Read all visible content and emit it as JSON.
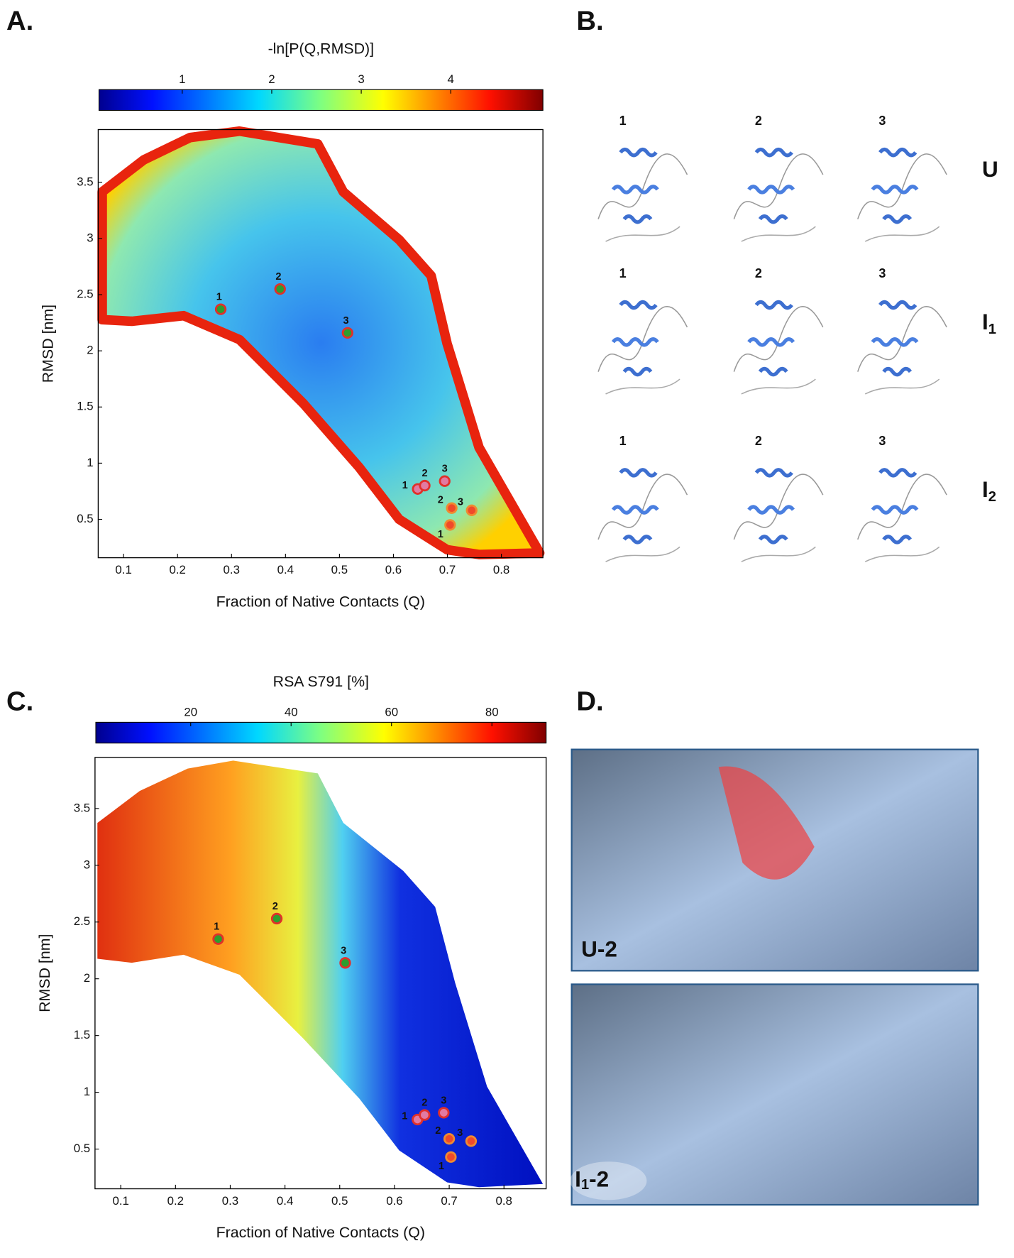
{
  "panels": [
    {
      "label": "A."
    },
    {
      "label": "B."
    },
    {
      "label": "C."
    },
    {
      "label": "D."
    }
  ],
  "chart_data": [
    {
      "type": "scatter",
      "colorbar_label": "-ln[P(Q,RMSD)]",
      "colorbar_lim": [
        0.07,
        5.03
      ],
      "colorbar_ticks": [
        1,
        2,
        3,
        4
      ],
      "x_label": "Fraction of Native Contacts (Q)",
      "y_label": "RMSD [nm]",
      "xlim": [
        0.053,
        0.877
      ],
      "ylim": [
        0.158,
        3.97
      ],
      "xticks": [
        0.1,
        0.2,
        0.3,
        0.4,
        0.5,
        0.6,
        0.7,
        0.8
      ],
      "yticks": [
        0.5,
        1.0,
        1.5,
        2.0,
        2.5,
        3.0,
        3.5
      ],
      "series": [
        {
          "color": "#2e9e2e",
          "edge_color": "#e0302a",
          "x": [
            0.28,
            0.39,
            0.515
          ],
          "y": [
            2.37,
            2.55,
            2.16
          ],
          "point_labels": [
            "1",
            "2",
            "3"
          ]
        },
        {
          "color": "#e27aa2",
          "edge_color": "#e0302a",
          "x": [
            0.645,
            0.658,
            0.695
          ],
          "y": [
            0.77,
            0.8,
            0.84
          ],
          "point_labels": [
            "1",
            "2",
            "3"
          ]
        },
        {
          "color": "#f04a2a",
          "edge_color": "#f08a30",
          "x": [
            0.705,
            0.708,
            0.745
          ],
          "y": [
            0.45,
            0.6,
            0.58
          ],
          "point_labels": [
            "1",
            "2",
            "3"
          ]
        }
      ]
    },
    {
      "type": "scatter",
      "colorbar_label": "RSA S791 [%]",
      "colorbar_lim": [
        1.1,
        90.8
      ],
      "colorbar_ticks": [
        20,
        40,
        60,
        80
      ],
      "x_label": "Fraction of Native Contacts (Q)",
      "y_label": "RMSD [nm]",
      "xlim": [
        0.053,
        0.877
      ],
      "ylim": [
        0.15,
        3.95
      ],
      "xticks": [
        0.1,
        0.2,
        0.3,
        0.4,
        0.5,
        0.6,
        0.7,
        0.8
      ],
      "yticks": [
        0.5,
        1.0,
        1.5,
        2.0,
        2.5,
        3.0,
        3.5
      ],
      "series": [
        {
          "color": "#2e9e2e",
          "edge_color": "#e0302a",
          "x": [
            0.278,
            0.385,
            0.51
          ],
          "y": [
            2.35,
            2.53,
            2.14
          ],
          "point_labels": [
            "1",
            "2",
            "3"
          ]
        },
        {
          "color": "#e27aa2",
          "edge_color": "#e0302a",
          "x": [
            0.642,
            0.655,
            0.69
          ],
          "y": [
            0.76,
            0.8,
            0.82
          ],
          "point_labels": [
            "1",
            "2",
            "3"
          ]
        },
        {
          "color": "#f04a2a",
          "edge_color": "#f08a30",
          "x": [
            0.703,
            0.7,
            0.74
          ],
          "y": [
            0.43,
            0.59,
            0.57
          ],
          "point_labels": [
            "1",
            "2",
            "3"
          ]
        }
      ]
    }
  ],
  "structures": {
    "rows": [
      {
        "label": {
          "main": "U",
          "sub": ""
        },
        "color": "#3aaa35",
        "columns": [
          "1",
          "2",
          "3"
        ]
      },
      {
        "label": {
          "main": "I",
          "sub": "1"
        },
        "color": "#c8307a",
        "columns": [
          "1",
          "2",
          "3"
        ]
      },
      {
        "label": {
          "main": "I",
          "sub": "2"
        },
        "color": "#f0a020",
        "columns": [
          "1",
          "2",
          "3"
        ]
      }
    ]
  },
  "surfaces": [
    {
      "label": {
        "main": "U-2",
        "sub": ""
      },
      "color": "#3aaa35"
    },
    {
      "label": {
        "main": "I",
        "sub": "1",
        "rest": "-2"
      },
      "color": "#c8307a"
    }
  ]
}
